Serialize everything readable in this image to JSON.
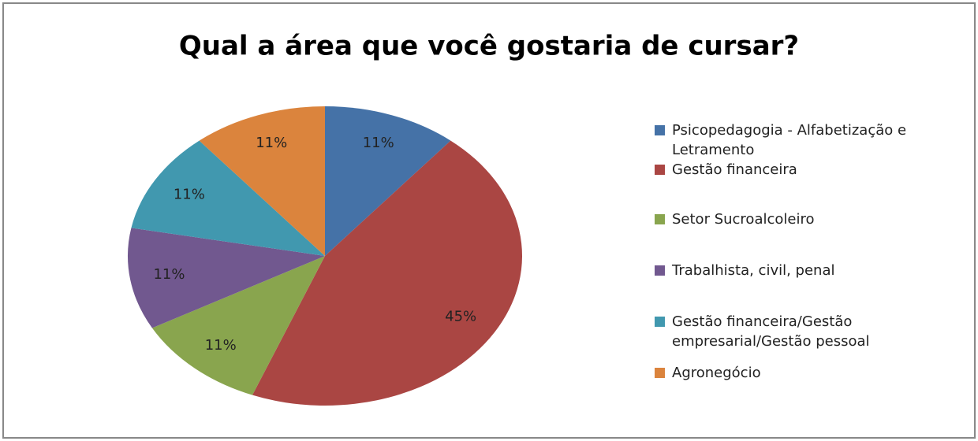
{
  "chart_data": {
    "type": "pie",
    "title": "Qual a área que você gostaria de cursar?",
    "categories": [
      "Psicopedagogia - Alfabetização e Letramento",
      "Gestão financeira",
      "Setor Sucroalcoleiro",
      "Trabalhista, civil, penal",
      "Gestão financeira/Gestão empresarial/Gestão pessoal",
      "Agronegócio"
    ],
    "values": [
      11,
      45,
      11,
      11,
      11,
      11
    ],
    "value_labels": [
      "11%",
      "45%",
      "11%",
      "11%",
      "11%",
      "11%"
    ],
    "colors": [
      "#4572a7",
      "#aa4643",
      "#89a54e",
      "#71588f",
      "#4198af",
      "#db843d"
    ],
    "legend": "right"
  }
}
